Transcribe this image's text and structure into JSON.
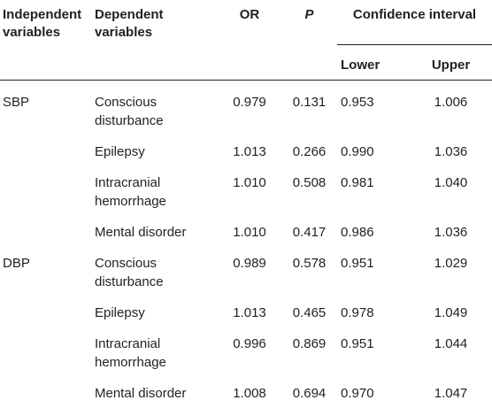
{
  "headers": {
    "col1": [
      "Independent",
      "variables"
    ],
    "col2": [
      "Dependent",
      "variables"
    ],
    "or": "OR",
    "p": "P",
    "ci": "Confidence interval",
    "lower": "Lower",
    "upper": "Upper"
  },
  "rows": [
    {
      "iv": "SBP",
      "dv": [
        "Conscious",
        "disturbance"
      ],
      "or": "0.979",
      "p": "0.131",
      "lower": "0.953",
      "upper": "1.006"
    },
    {
      "iv": "",
      "dv": [
        "Epilepsy"
      ],
      "or": "1.013",
      "p": "0.266",
      "lower": "0.990",
      "upper": "1.036"
    },
    {
      "iv": "",
      "dv": [
        "Intracranial",
        "hemorrhage"
      ],
      "or": "1.010",
      "p": "0.508",
      "lower": "0.981",
      "upper": "1.040"
    },
    {
      "iv": "",
      "dv": [
        "Mental disorder"
      ],
      "or": "1.010",
      "p": "0.417",
      "lower": "0.986",
      "upper": "1.036"
    },
    {
      "iv": "DBP",
      "dv": [
        "Conscious",
        "disturbance"
      ],
      "or": "0.989",
      "p": "0.578",
      "lower": "0.951",
      "upper": "1.029"
    },
    {
      "iv": "",
      "dv": [
        "Epilepsy"
      ],
      "or": "1.013",
      "p": "0.465",
      "lower": "0.978",
      "upper": "1.049"
    },
    {
      "iv": "",
      "dv": [
        "Intracranial",
        "hemorrhage"
      ],
      "or": "0.996",
      "p": "0.869",
      "lower": "0.951",
      "upper": "1.044"
    },
    {
      "iv": "",
      "dv": [
        "Mental disorder"
      ],
      "or": "1.008",
      "p": "0.694",
      "lower": "0.970",
      "upper": "1.047"
    }
  ]
}
